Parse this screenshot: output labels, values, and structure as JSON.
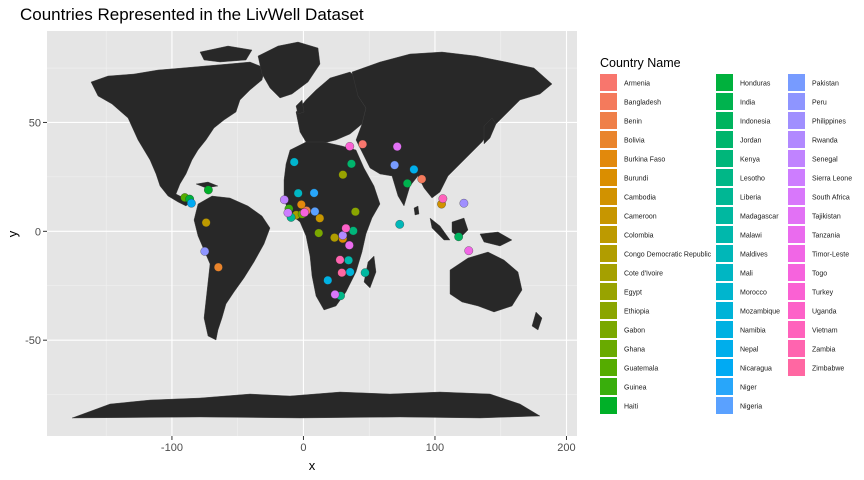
{
  "chart_data": {
    "type": "map",
    "title": "Countries Represented in the LivWell Dataset",
    "xlabel": "x",
    "ylabel": "y",
    "xlim": [
      -195,
      208
    ],
    "ylim": [
      -94,
      92
    ],
    "x_ticks": [
      -100,
      0,
      100,
      200
    ],
    "x_tick_labels": [
      "-100",
      "0",
      "100",
      "200"
    ],
    "y_ticks": [
      -50,
      0,
      50
    ],
    "y_tick_labels": [
      "-50",
      "0",
      "50"
    ],
    "grid": true,
    "background_fill": "#e5e5e5",
    "land_fill": "#282828",
    "legend": {
      "title": "Country Name",
      "position": "right",
      "columns": 3,
      "rows_per_column": 18
    },
    "countries": [
      {
        "name": "Armenia",
        "color": "#F8766D",
        "lon": 45,
        "lat": 40
      },
      {
        "name": "Bangladesh",
        "color": "#F47A5C",
        "lon": 90,
        "lat": 24
      },
      {
        "name": "Benin",
        "color": "#EF7F48",
        "lon": 2.3,
        "lat": 9.5
      },
      {
        "name": "Bolivia",
        "color": "#E9842C",
        "lon": -64.7,
        "lat": -16.5
      },
      {
        "name": "Burkina Faso",
        "color": "#E2890C",
        "lon": -1.6,
        "lat": 12.3
      },
      {
        "name": "Burundi",
        "color": "#DA8E00",
        "lon": 29.9,
        "lat": -3.4
      },
      {
        "name": "Cambodia",
        "color": "#D19200",
        "lon": 105,
        "lat": 12.5
      },
      {
        "name": "Cameroon",
        "color": "#C79600",
        "lon": 12.4,
        "lat": 6
      },
      {
        "name": "Colombia",
        "color": "#BD9A00",
        "lon": -74,
        "lat": 4
      },
      {
        "name": "Congo Democratic Republic",
        "color": "#B19D00",
        "lon": 23.6,
        "lat": -2.9
      },
      {
        "name": "Cote d'Ivoire",
        "color": "#A5A000",
        "lon": -5.5,
        "lat": 7.5
      },
      {
        "name": "Egypt",
        "color": "#98A300",
        "lon": 30,
        "lat": 26
      },
      {
        "name": "Ethiopia",
        "color": "#8AA500",
        "lon": 39.5,
        "lat": 9
      },
      {
        "name": "Gabon",
        "color": "#7AA800",
        "lon": 11.6,
        "lat": -0.8
      },
      {
        "name": "Ghana",
        "color": "#69AA00",
        "lon": -1,
        "lat": 7.9
      },
      {
        "name": "Guatemala",
        "color": "#55AC00",
        "lon": -90.2,
        "lat": 15.5
      },
      {
        "name": "Guinea",
        "color": "#39AE0C",
        "lon": -11,
        "lat": 10.4
      },
      {
        "name": "Haiti",
        "color": "#00B028",
        "lon": -72.3,
        "lat": 19
      },
      {
        "name": "Honduras",
        "color": "#00B13D",
        "lon": -86.5,
        "lat": 14.8
      },
      {
        "name": "India",
        "color": "#00B34E",
        "lon": 79,
        "lat": 22
      },
      {
        "name": "Indonesia",
        "color": "#00B45E",
        "lon": 118,
        "lat": -2.5
      },
      {
        "name": "Jordan",
        "color": "#00B56C",
        "lon": 36.5,
        "lat": 31
      },
      {
        "name": "Kenya",
        "color": "#00B67A",
        "lon": 37.9,
        "lat": 0.2
      },
      {
        "name": "Lesotho",
        "color": "#00B787",
        "lon": 28.2,
        "lat": -29.6
      },
      {
        "name": "Liberia",
        "color": "#00B794",
        "lon": -9.4,
        "lat": 6.4
      },
      {
        "name": "Madagascar",
        "color": "#00B8A0",
        "lon": 46.9,
        "lat": -19
      },
      {
        "name": "Malawi",
        "color": "#00B8AC",
        "lon": 34.3,
        "lat": -13.3
      },
      {
        "name": "Maldives",
        "color": "#00B7B8",
        "lon": 73.2,
        "lat": 3.2
      },
      {
        "name": "Mali",
        "color": "#00B6C3",
        "lon": -4,
        "lat": 17.5
      },
      {
        "name": "Morocco",
        "color": "#00B5CE",
        "lon": -7,
        "lat": 31.8
      },
      {
        "name": "Mozambique",
        "color": "#00B3D8",
        "lon": 35.5,
        "lat": -18.7
      },
      {
        "name": "Namibia",
        "color": "#00B1E2",
        "lon": 18.5,
        "lat": -22.5
      },
      {
        "name": "Nepal",
        "color": "#00AEEB",
        "lon": 84,
        "lat": 28.4
      },
      {
        "name": "Nicaragua",
        "color": "#00AAF3",
        "lon": -85.2,
        "lat": 12.9
      },
      {
        "name": "Niger",
        "color": "#28A6FA",
        "lon": 8.1,
        "lat": 17.6
      },
      {
        "name": "Nigeria",
        "color": "#5AA1FF",
        "lon": 8.7,
        "lat": 9.1
      },
      {
        "name": "Pakistan",
        "color": "#779BFF",
        "lon": 69.3,
        "lat": 30.4
      },
      {
        "name": "Peru",
        "color": "#8E95FF",
        "lon": -75,
        "lat": -9.2
      },
      {
        "name": "Philippines",
        "color": "#A08FFF",
        "lon": 122,
        "lat": 12.9
      },
      {
        "name": "Rwanda",
        "color": "#B189FF",
        "lon": 29.9,
        "lat": -1.9
      },
      {
        "name": "Senegal",
        "color": "#C083FF",
        "lon": -14.5,
        "lat": 14.5
      },
      {
        "name": "Sierra Leone",
        "color": "#CD7DFF",
        "lon": -11.8,
        "lat": 8.5
      },
      {
        "name": "South Africa",
        "color": "#D877FB",
        "lon": 24,
        "lat": -29
      },
      {
        "name": "Tajikistan",
        "color": "#E271F5",
        "lon": 71.3,
        "lat": 38.9
      },
      {
        "name": "Tanzania",
        "color": "#EA6BEE",
        "lon": 34.9,
        "lat": -6.4
      },
      {
        "name": "Timor-Leste",
        "color": "#F166E6",
        "lon": 125.7,
        "lat": -8.9
      },
      {
        "name": "Togo",
        "color": "#F663DD",
        "lon": 0.8,
        "lat": 8.6
      },
      {
        "name": "Turkey",
        "color": "#FA61D3",
        "lon": 35.2,
        "lat": 39
      },
      {
        "name": "Uganda",
        "color": "#FD61C8",
        "lon": 32.3,
        "lat": 1.4
      },
      {
        "name": "Vietnam",
        "color": "#FF62BC",
        "lon": 106,
        "lat": 15
      },
      {
        "name": "Zambia",
        "color": "#FF64AF",
        "lon": 27.8,
        "lat": -13.1
      },
      {
        "name": "Zimbabwe",
        "color": "#FF67A2",
        "lon": 29.2,
        "lat": -19
      }
    ]
  }
}
